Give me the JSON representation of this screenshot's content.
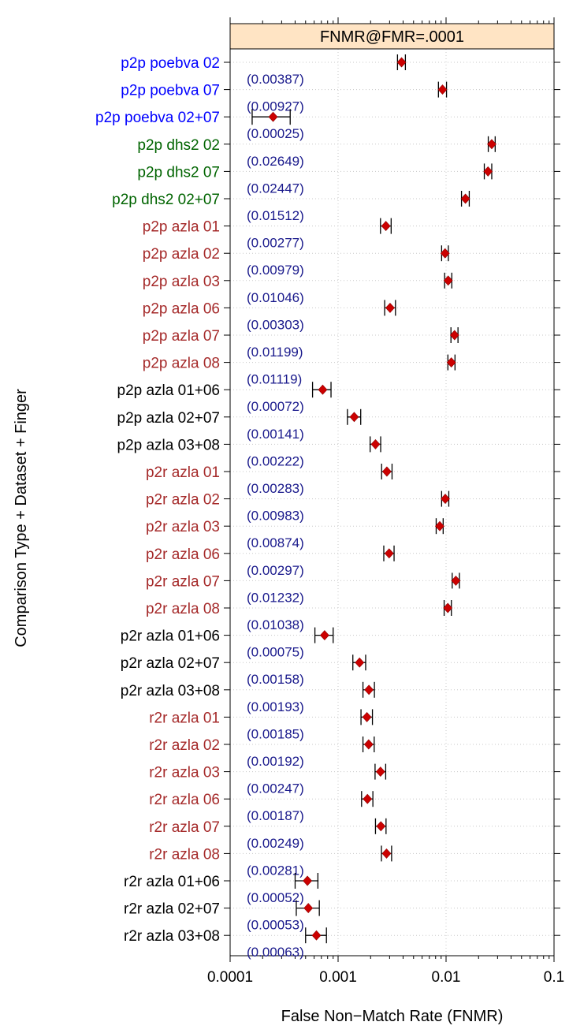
{
  "chart_data": {
    "type": "dot",
    "title": "FNMR@FMR=.0001",
    "xlabel": "False Non−Match Rate (FNMR)",
    "ylabel": "Comparison Type + Dataset + Finger",
    "xscale": "log",
    "xlim": [
      0.0001,
      0.1
    ],
    "xticks": [
      0.0001,
      0.001,
      0.01,
      0.1
    ],
    "xtick_labels": [
      "0.0001",
      "0.001",
      "0.01",
      "0.1"
    ],
    "grid": true,
    "colors": {
      "blue": "#0000ff",
      "green": "#006400",
      "brown": "#a52a2a",
      "black": "#000000",
      "value_label": "#1a1a8c",
      "point": "#cc0000",
      "strip": "#ffe4c4"
    },
    "categories": [
      {
        "label": "p2p poebva 02",
        "value": 0.00387,
        "lo": 0.00355,
        "hi": 0.0042,
        "value_label": "(0.00387)",
        "color": "blue"
      },
      {
        "label": "p2p poebva 07",
        "value": 0.00927,
        "lo": 0.0085,
        "hi": 0.0101,
        "value_label": "(0.00927)",
        "color": "blue"
      },
      {
        "label": "p2p poebva 02+07",
        "value": 0.00025,
        "lo": 0.00016,
        "hi": 0.00036,
        "value_label": "(0.00025)",
        "color": "blue"
      },
      {
        "label": "p2p dhs2 02",
        "value": 0.02649,
        "lo": 0.0246,
        "hi": 0.0285,
        "value_label": "(0.02649)",
        "color": "green"
      },
      {
        "label": "p2p dhs2 07",
        "value": 0.02447,
        "lo": 0.0226,
        "hi": 0.0265,
        "value_label": "(0.02447)",
        "color": "green"
      },
      {
        "label": "p2p dhs2 02+07",
        "value": 0.01512,
        "lo": 0.0139,
        "hi": 0.0164,
        "value_label": "(0.01512)",
        "color": "green"
      },
      {
        "label": "p2p azla 01",
        "value": 0.00277,
        "lo": 0.00247,
        "hi": 0.0031,
        "value_label": "(0.00277)",
        "color": "brown"
      },
      {
        "label": "p2p azla 02",
        "value": 0.00979,
        "lo": 0.0091,
        "hi": 0.0105,
        "value_label": "(0.00979)",
        "color": "brown"
      },
      {
        "label": "p2p azla 03",
        "value": 0.01046,
        "lo": 0.0097,
        "hi": 0.0113,
        "value_label": "(0.01046)",
        "color": "brown"
      },
      {
        "label": "p2p azla 06",
        "value": 0.00303,
        "lo": 0.0027,
        "hi": 0.0034,
        "value_label": "(0.00303)",
        "color": "brown"
      },
      {
        "label": "p2p azla 07",
        "value": 0.01199,
        "lo": 0.0111,
        "hi": 0.0129,
        "value_label": "(0.01199)",
        "color": "brown"
      },
      {
        "label": "p2p azla 08",
        "value": 0.01119,
        "lo": 0.0104,
        "hi": 0.0121,
        "value_label": "(0.01119)",
        "color": "brown"
      },
      {
        "label": "p2p azla 01+06",
        "value": 0.00072,
        "lo": 0.00058,
        "hi": 0.00086,
        "value_label": "(0.00072)",
        "color": "black"
      },
      {
        "label": "p2p azla 02+07",
        "value": 0.00141,
        "lo": 0.00122,
        "hi": 0.00162,
        "value_label": "(0.00141)",
        "color": "black"
      },
      {
        "label": "p2p azla 03+08",
        "value": 0.00222,
        "lo": 0.00198,
        "hi": 0.00248,
        "value_label": "(0.00222)",
        "color": "black"
      },
      {
        "label": "p2r azla 01",
        "value": 0.00283,
        "lo": 0.00253,
        "hi": 0.00316,
        "value_label": "(0.00283)",
        "color": "brown"
      },
      {
        "label": "p2r azla 02",
        "value": 0.00983,
        "lo": 0.0091,
        "hi": 0.0106,
        "value_label": "(0.00983)",
        "color": "brown"
      },
      {
        "label": "p2r azla 03",
        "value": 0.00874,
        "lo": 0.0081,
        "hi": 0.0094,
        "value_label": "(0.00874)",
        "color": "brown"
      },
      {
        "label": "p2r azla 06",
        "value": 0.00297,
        "lo": 0.00265,
        "hi": 0.0033,
        "value_label": "(0.00297)",
        "color": "brown"
      },
      {
        "label": "p2r azla 07",
        "value": 0.01232,
        "lo": 0.0114,
        "hi": 0.0133,
        "value_label": "(0.01232)",
        "color": "brown"
      },
      {
        "label": "p2r azla 08",
        "value": 0.01038,
        "lo": 0.0096,
        "hi": 0.0112,
        "value_label": "(0.01038)",
        "color": "brown"
      },
      {
        "label": "p2r azla 01+06",
        "value": 0.00075,
        "lo": 0.00061,
        "hi": 0.0009,
        "value_label": "(0.00075)",
        "color": "black"
      },
      {
        "label": "p2r azla 02+07",
        "value": 0.00158,
        "lo": 0.00137,
        "hi": 0.0018,
        "value_label": "(0.00158)",
        "color": "black"
      },
      {
        "label": "p2r azla 03+08",
        "value": 0.00193,
        "lo": 0.0017,
        "hi": 0.00217,
        "value_label": "(0.00193)",
        "color": "black"
      },
      {
        "label": "r2r azla 01",
        "value": 0.00185,
        "lo": 0.00163,
        "hi": 0.00208,
        "value_label": "(0.00185)",
        "color": "brown"
      },
      {
        "label": "r2r azla 02",
        "value": 0.00192,
        "lo": 0.0017,
        "hi": 0.00216,
        "value_label": "(0.00192)",
        "color": "brown"
      },
      {
        "label": "r2r azla 03",
        "value": 0.00247,
        "lo": 0.0022,
        "hi": 0.00276,
        "value_label": "(0.00247)",
        "color": "brown"
      },
      {
        "label": "r2r azla 06",
        "value": 0.00187,
        "lo": 0.00165,
        "hi": 0.0021,
        "value_label": "(0.00187)",
        "color": "brown"
      },
      {
        "label": "r2r azla 07",
        "value": 0.00249,
        "lo": 0.00222,
        "hi": 0.00278,
        "value_label": "(0.00249)",
        "color": "brown"
      },
      {
        "label": "r2r azla 08",
        "value": 0.00281,
        "lo": 0.00252,
        "hi": 0.00313,
        "value_label": "(0.00281)",
        "color": "brown"
      },
      {
        "label": "r2r azla 01+06",
        "value": 0.00052,
        "lo": 0.0004,
        "hi": 0.00065,
        "value_label": "(0.00052)",
        "color": "black"
      },
      {
        "label": "r2r azla 02+07",
        "value": 0.00053,
        "lo": 0.00041,
        "hi": 0.00067,
        "value_label": "(0.00053)",
        "color": "black"
      },
      {
        "label": "r2r azla 03+08",
        "value": 0.00063,
        "lo": 0.0005,
        "hi": 0.00078,
        "value_label": "(0.00063)",
        "color": "black"
      }
    ]
  }
}
